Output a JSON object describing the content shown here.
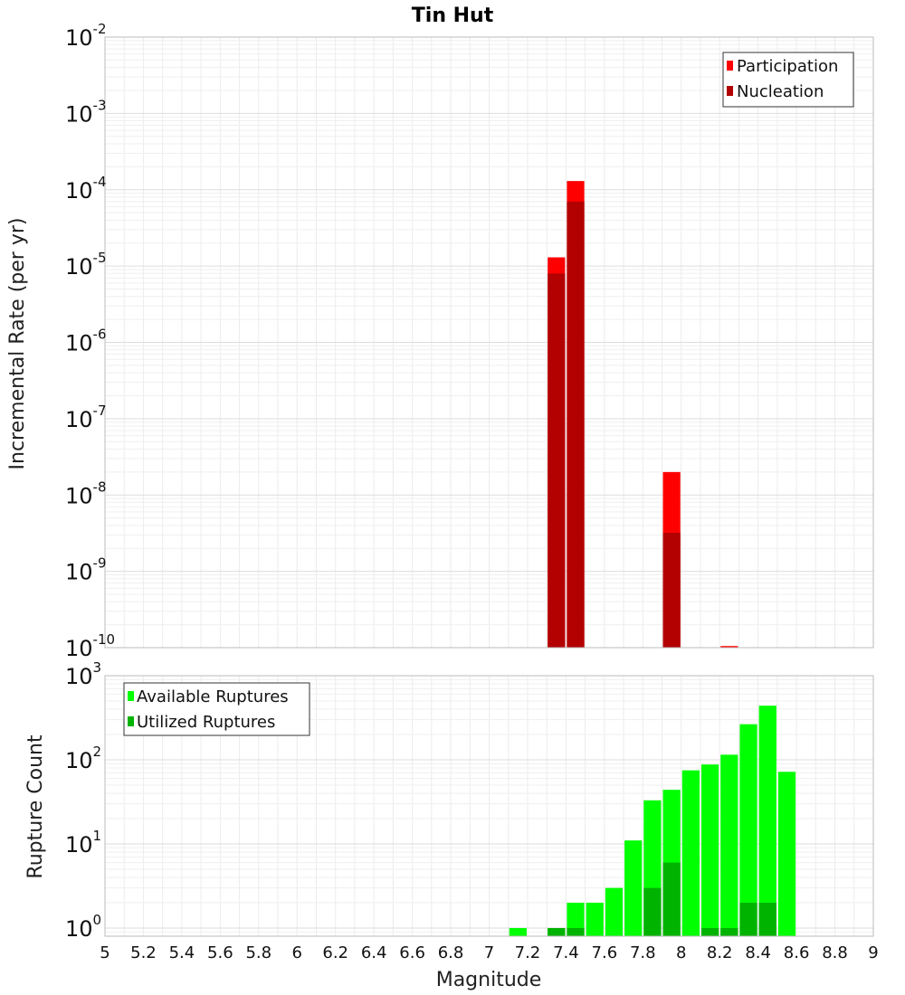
{
  "title": "Tin Hut",
  "colors": {
    "participation": "#ff0000",
    "nucleation": "#b30000",
    "available": "#00ff00",
    "utilized": "#00b300",
    "grid": "#e6e6e6",
    "plot_border": "#bbbbbb"
  },
  "chart_data": [
    {
      "type": "bar",
      "name": "rate",
      "xlabel": "",
      "ylabel": "Incremental Rate (per yr)",
      "yscale": "log",
      "ylim": [
        1e-10,
        0.01
      ],
      "y_tick_exponents": [
        -10,
        -9,
        -8,
        -7,
        -6,
        -5,
        -4,
        -3,
        -2
      ],
      "xlim": [
        5,
        9
      ],
      "bin_width": 0.1,
      "grid": true,
      "legend_position": "top-right",
      "series": [
        {
          "name": "Participation",
          "color": "#ff0000",
          "points": [
            {
              "x": 7.35,
              "y": 1.3e-05
            },
            {
              "x": 7.45,
              "y": 0.00013
            },
            {
              "x": 7.95,
              "y": 2e-08
            },
            {
              "x": 8.25,
              "y": 1.05e-10
            }
          ]
        },
        {
          "name": "Nucleation",
          "color": "#b30000",
          "points": [
            {
              "x": 7.35,
              "y": 8e-06
            },
            {
              "x": 7.45,
              "y": 7e-05
            },
            {
              "x": 7.95,
              "y": 3.2e-09
            }
          ]
        }
      ]
    },
    {
      "type": "bar",
      "name": "count",
      "xlabel": "Magnitude",
      "ylabel": "Rupture Count",
      "yscale": "log",
      "ylim": [
        0.8,
        1000
      ],
      "y_tick_exponents": [
        0,
        1,
        2,
        3
      ],
      "xlim": [
        5,
        9
      ],
      "x_ticks": [
        "5",
        "5.2",
        "5.4",
        "5.6",
        "5.8",
        "6",
        "6.2",
        "6.4",
        "6.6",
        "6.8",
        "7",
        "7.2",
        "7.4",
        "7.6",
        "7.8",
        "8",
        "8.2",
        "8.4",
        "8.6",
        "8.8",
        "9"
      ],
      "bin_width": 0.1,
      "grid": true,
      "legend_position": "top-left",
      "series": [
        {
          "name": "Available Ruptures",
          "color": "#00ff00",
          "points": [
            {
              "x": 7.15,
              "y": 1
            },
            {
              "x": 7.35,
              "y": 1
            },
            {
              "x": 7.45,
              "y": 2
            },
            {
              "x": 7.55,
              "y": 2
            },
            {
              "x": 7.65,
              "y": 3
            },
            {
              "x": 7.75,
              "y": 11
            },
            {
              "x": 7.85,
              "y": 33
            },
            {
              "x": 7.95,
              "y": 44
            },
            {
              "x": 8.05,
              "y": 75
            },
            {
              "x": 8.15,
              "y": 88
            },
            {
              "x": 8.25,
              "y": 115
            },
            {
              "x": 8.35,
              "y": 265
            },
            {
              "x": 8.45,
              "y": 440
            },
            {
              "x": 8.55,
              "y": 72
            }
          ]
        },
        {
          "name": "Utilized Ruptures",
          "color": "#00b300",
          "points": [
            {
              "x": 7.35,
              "y": 1
            },
            {
              "x": 7.45,
              "y": 1
            },
            {
              "x": 7.85,
              "y": 3
            },
            {
              "x": 7.95,
              "y": 6
            },
            {
              "x": 8.15,
              "y": 1
            },
            {
              "x": 8.25,
              "y": 1
            },
            {
              "x": 8.35,
              "y": 2
            },
            {
              "x": 8.45,
              "y": 2
            }
          ]
        }
      ]
    }
  ]
}
